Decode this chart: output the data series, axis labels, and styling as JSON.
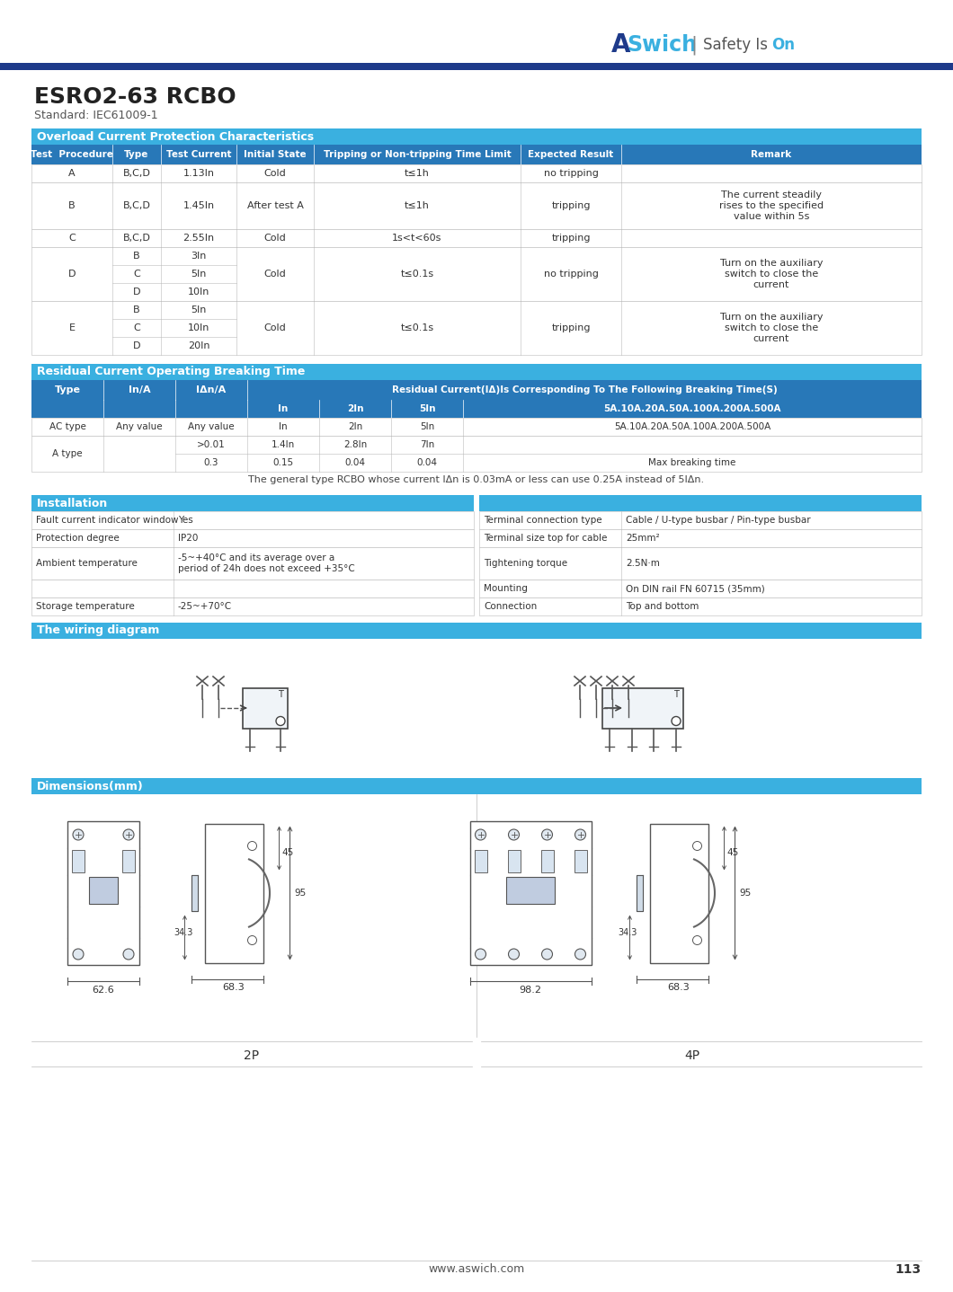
{
  "brand_name": "ASwich",
  "brand_tagline": "Safety Is On",
  "product_title": "ESRO2-63 RCBO",
  "standard": "Standard: IEC61009-1",
  "overload_title": "Overload Current Protection Characteristics",
  "residual_title": "Residual Current Operating Breaking Time",
  "installation_title": "Installation",
  "wiring_title": "The wiring diagram",
  "dimensions_title": "Dimensions(mm)",
  "footer_url": "www.aswich.com",
  "footer_page": "113",
  "bg_color": "#ffffff",
  "text_color": "#333333",
  "line_color": "#bbbbbb",
  "blue_dark": "#1e3a8a",
  "blue_mid": "#2878b8",
  "blue_light": "#3ab0e0",
  "white": "#ffffff"
}
